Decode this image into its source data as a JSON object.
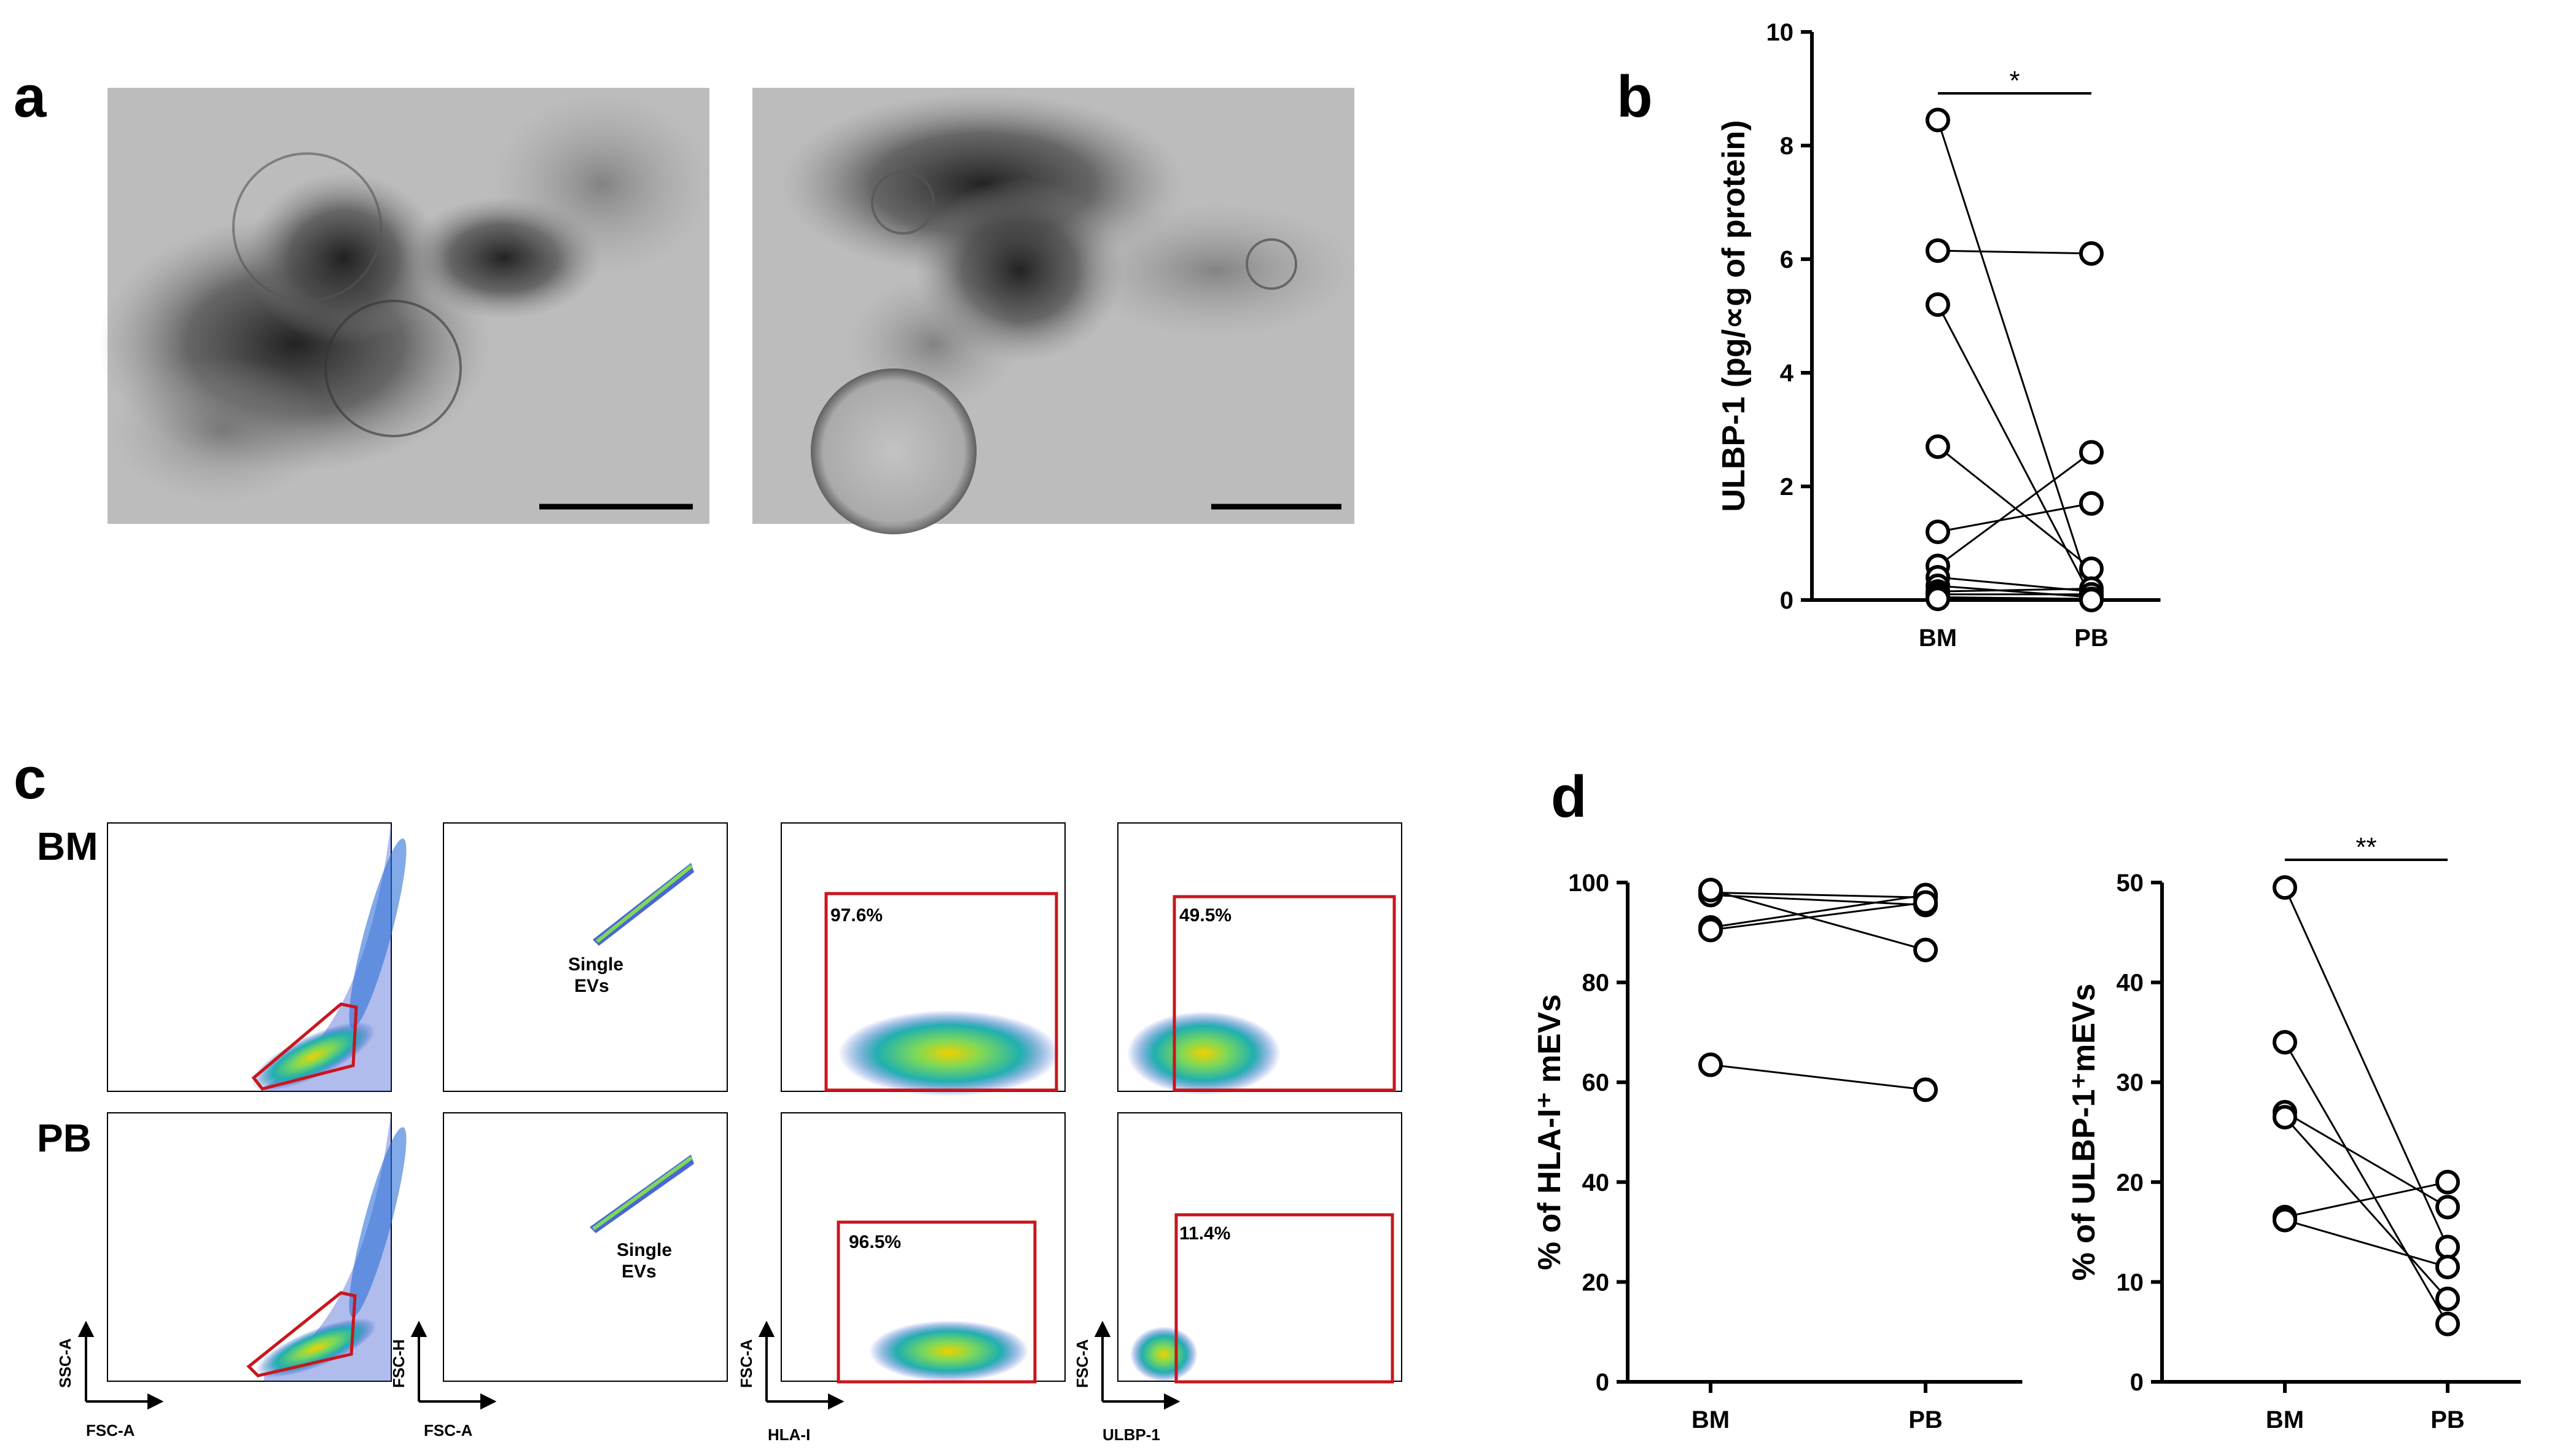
{
  "panels": {
    "a": {
      "label": "a",
      "description_free": true
    },
    "b": {
      "label": "b"
    },
    "c": {
      "label": "c",
      "rows": [
        "BM",
        "PB"
      ]
    },
    "d": {
      "label": "d"
    }
  },
  "flow": {
    "row_labels": [
      "BM",
      "PB"
    ],
    "single_evs_line1": "Single",
    "single_evs_line2": "EVs",
    "percents": {
      "bm_hla": "97.6%",
      "bm_ulbp": "49.5%",
      "pb_hla": "96.5%",
      "pb_ulbp": "11.4%"
    },
    "axes": {
      "p1": {
        "x": "FSC-A",
        "y": "SSC-A"
      },
      "p2": {
        "x": "FSC-A",
        "y": "FSC-H"
      },
      "p3": {
        "x": "HLA-I",
        "y": "FSC-A"
      },
      "p4": {
        "x": "ULBP-1",
        "y": "FSC-A"
      }
    }
  },
  "colors": {
    "gate": "#c8161d",
    "ink": "#000000"
  },
  "chart_data": [
    {
      "id": "b",
      "type": "scatter",
      "title": "",
      "ylabel": "ULBP-1 (pg/∝g of protein)",
      "categories": [
        "BM",
        "PB"
      ],
      "ylim": [
        0,
        10
      ],
      "yticks": [
        0,
        2,
        4,
        6,
        8,
        10
      ],
      "significance": "*",
      "pairs": [
        [
          8.45,
          0.1
        ],
        [
          6.15,
          6.1
        ],
        [
          5.2,
          0.05
        ],
        [
          2.7,
          0.55
        ],
        [
          1.2,
          1.7
        ],
        [
          0.6,
          2.6
        ],
        [
          0.4,
          0.15
        ],
        [
          0.25,
          0.05
        ],
        [
          0.15,
          0.2
        ],
        [
          0.1,
          0.1
        ],
        [
          0.05,
          0.02
        ],
        [
          0.02,
          0.0
        ]
      ]
    },
    {
      "id": "d1",
      "type": "scatter",
      "title": "",
      "ylabel": "% of HLA-I⁺ mEVs",
      "categories": [
        "BM",
        "PB"
      ],
      "ylim": [
        0,
        100
      ],
      "yticks": [
        0,
        20,
        40,
        60,
        80,
        100
      ],
      "significance": "",
      "pairs": [
        [
          98,
          97
        ],
        [
          97.5,
          95.5
        ],
        [
          91,
          97.5
        ],
        [
          90.5,
          96
        ],
        [
          98.5,
          86.5
        ],
        [
          63.5,
          58.5
        ]
      ]
    },
    {
      "id": "d2",
      "type": "scatter",
      "title": "",
      "ylabel": "% of ULBP-1⁺mEVs",
      "categories": [
        "BM",
        "PB"
      ],
      "ylim": [
        0,
        50
      ],
      "yticks": [
        0,
        10,
        20,
        30,
        40,
        50
      ],
      "significance": "**",
      "pairs": [
        [
          49.5,
          13.5
        ],
        [
          34,
          5.8
        ],
        [
          27,
          17.5
        ],
        [
          26.5,
          8.3
        ],
        [
          16.5,
          20
        ],
        [
          16.2,
          11.5
        ]
      ]
    }
  ]
}
